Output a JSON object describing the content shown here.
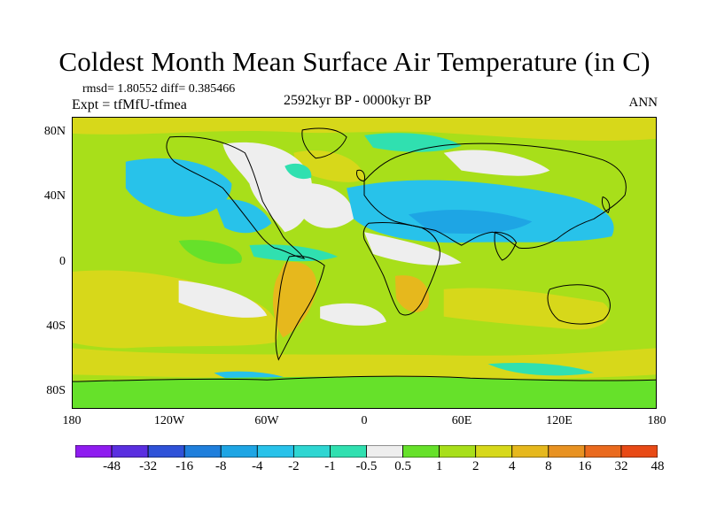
{
  "title": "Coldest Month Mean Surface Air Temperature (in C)",
  "stats_line": "rmsd= 1.80552 diff= 0.385466",
  "experiment_line": "Expt = tfMfU-tfmea",
  "period_label": "2592kyr BP - 0000kyr BP",
  "season_label": "ANN",
  "lat_ticks": [
    "80N",
    "40N",
    "0",
    "40S",
    "80S"
  ],
  "lon_ticks": [
    "180",
    "120W",
    "60W",
    "0",
    "60E",
    "120E",
    "180"
  ],
  "colorbar": {
    "colors": [
      "#8f1cf0",
      "#5a2fe0",
      "#2f52d8",
      "#1f7fdc",
      "#1ea5e4",
      "#28c2ea",
      "#2ed6d2",
      "#30e0b0",
      "#eeeeee",
      "#66e12a",
      "#a8df1a",
      "#d7d81a",
      "#e6b81d",
      "#e89222",
      "#ea6a1e",
      "#e84a16"
    ],
    "labels": [
      "-48",
      "-32",
      "-16",
      "-8",
      "-4",
      "-2",
      "-1",
      "-0.5",
      "0.5",
      "1",
      "2",
      "4",
      "8",
      "16",
      "32",
      "48"
    ]
  },
  "map_colors": {
    "ocean_background": "#a8df1a",
    "neutral": "#eeeeee",
    "cool_light": "#30e0b0",
    "cool": "#28c2ea",
    "cool_strong": "#1ea5e4",
    "warm_light": "#66e12a",
    "warm": "#d7d81a",
    "warm_strong": "#e6b81d",
    "coastline": "#000000"
  }
}
